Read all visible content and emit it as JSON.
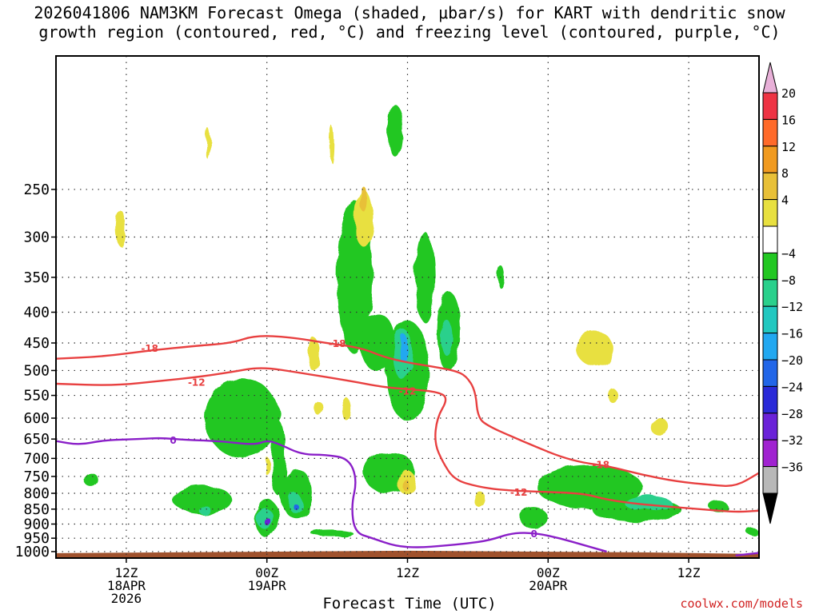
{
  "title": {
    "line1": "2026041806 NAM3KM Forecast Omega (shaded, μbar/s) for KART with dendritic snow",
    "line2": "growth region (contoured, red, °C) and freezing level (contoured, purple, °C)"
  },
  "credit": "coolwx.com/models",
  "chart_data": {
    "type": "heatmap",
    "title": "2026041806 NAM3KM Forecast Omega (shaded, μbar/s) for KART with dendritic snow growth region (contoured, red, °C) and freezing level (contoured, purple, °C)",
    "xlabel": "Forecast Time (UTC)",
    "ylabel": "",
    "x_unit": "hours since 2026-04-18 06Z",
    "xlim": [
      0,
      60
    ],
    "y_unit": "hPa",
    "ylim": [
      1025,
      150
    ],
    "y_scale": "log",
    "grid": true,
    "y_ticks": [
      250,
      300,
      350,
      400,
      450,
      500,
      550,
      600,
      650,
      700,
      750,
      800,
      850,
      900,
      950,
      1000
    ],
    "x_ticks": [
      {
        "t": 6,
        "lines": [
          "12Z",
          "18APR",
          "2026"
        ]
      },
      {
        "t": 18,
        "lines": [
          "00Z",
          "19APR"
        ]
      },
      {
        "t": 30,
        "lines": [
          "12Z"
        ]
      },
      {
        "t": 42,
        "lines": [
          "00Z",
          "20APR"
        ]
      },
      {
        "t": 54,
        "lines": [
          "12Z"
        ]
      }
    ],
    "colorbar": {
      "labels": [
        "20",
        "16",
        "12",
        "8",
        "4",
        "−4",
        "−8",
        "−12",
        "−16",
        "−20",
        "−24",
        "−28",
        "−32",
        "−36"
      ],
      "colors": [
        "#e8b0d8",
        "#ee3344",
        "#ff6a2a",
        "#f09a20",
        "#e8c038",
        "#e8e040",
        "#ffffff",
        "#22c722",
        "#2ad08c",
        "#22c8c0",
        "#22a8f0",
        "#2266e8",
        "#2a2ad8",
        "#6a22d8",
        "#a022d0",
        "#b8b8b8",
        "#000000"
      ]
    },
    "shading": [
      {
        "t": 15.9,
        "p": 600,
        "rt": 3.2,
        "rp": 180,
        "level": "-4"
      },
      {
        "t": 18.0,
        "p": 880,
        "rt": 1.0,
        "rp": 130,
        "level": "-4"
      },
      {
        "t": 17.8,
        "p": 880,
        "rt": 0.7,
        "rp": 70,
        "level": "-8"
      },
      {
        "t": 18.0,
        "p": 890,
        "rt": 0.3,
        "rp": 25,
        "level": "-28"
      },
      {
        "t": 19.0,
        "p": 700,
        "rt": 0.6,
        "rp": 200,
        "level": "-4"
      },
      {
        "t": 20.5,
        "p": 800,
        "rt": 1.4,
        "rp": 150,
        "level": "-4"
      },
      {
        "t": 20.4,
        "p": 830,
        "rt": 0.6,
        "rp": 60,
        "level": "-8"
      },
      {
        "t": 20.4,
        "p": 840,
        "rt": 0.2,
        "rp": 15,
        "level": "-20"
      },
      {
        "t": 12.5,
        "p": 820,
        "rt": 2.5,
        "rp": 90,
        "level": "-4"
      },
      {
        "t": 12.6,
        "p": 850,
        "rt": 0.5,
        "rp": 30,
        "level": "-8"
      },
      {
        "t": 3.0,
        "p": 760,
        "rt": 0.6,
        "rp": 40,
        "level": "-4"
      },
      {
        "t": 25.5,
        "p": 350,
        "rt": 1.5,
        "rp": 200,
        "level": "-4"
      },
      {
        "t": 27.5,
        "p": 450,
        "rt": 1.5,
        "rp": 100,
        "level": "-4"
      },
      {
        "t": 30.0,
        "p": 500,
        "rt": 1.8,
        "rp": 190,
        "level": "-4"
      },
      {
        "t": 29.6,
        "p": 470,
        "rt": 0.9,
        "rp": 90,
        "level": "-8"
      },
      {
        "t": 29.7,
        "p": 460,
        "rt": 0.4,
        "rp": 50,
        "level": "-16"
      },
      {
        "t": 31.5,
        "p": 350,
        "rt": 0.8,
        "rp": 120,
        "level": "-4"
      },
      {
        "t": 33.5,
        "p": 430,
        "rt": 1.0,
        "rp": 130,
        "level": "-4"
      },
      {
        "t": 33.3,
        "p": 440,
        "rt": 0.5,
        "rp": 60,
        "level": "-8"
      },
      {
        "t": 28.5,
        "p": 740,
        "rt": 2.2,
        "rp": 120,
        "level": "-4"
      },
      {
        "t": 38.0,
        "p": 350,
        "rt": 0.3,
        "rp": 30,
        "level": "-4"
      },
      {
        "t": 40.8,
        "p": 880,
        "rt": 1.2,
        "rp": 70,
        "level": "-4"
      },
      {
        "t": 45.5,
        "p": 780,
        "rt": 4.5,
        "rp": 130,
        "level": "-4"
      },
      {
        "t": 49.5,
        "p": 850,
        "rt": 3.8,
        "rp": 80,
        "level": "-4"
      },
      {
        "t": 50.5,
        "p": 830,
        "rt": 2.0,
        "rp": 50,
        "level": "-8"
      },
      {
        "t": 56.5,
        "p": 840,
        "rt": 0.8,
        "rp": 35,
        "level": "-4"
      },
      {
        "t": 59.5,
        "p": 930,
        "rt": 0.5,
        "rp": 25,
        "level": "-4"
      },
      {
        "t": 23.5,
        "p": 930,
        "rt": 1.8,
        "rp": 25,
        "level": "-4"
      },
      {
        "t": 29.0,
        "p": 200,
        "rt": 0.6,
        "rp": 40,
        "level": "-4"
      },
      {
        "t": 5.5,
        "p": 290,
        "rt": 0.4,
        "rp": 40,
        "level": "4"
      },
      {
        "t": 18.0,
        "p": 720,
        "rt": 0.2,
        "rp": 50,
        "level": "4"
      },
      {
        "t": 22.0,
        "p": 470,
        "rt": 0.5,
        "rp": 60,
        "level": "4"
      },
      {
        "t": 22.5,
        "p": 580,
        "rt": 0.4,
        "rp": 30,
        "level": "4"
      },
      {
        "t": 24.8,
        "p": 580,
        "rt": 0.4,
        "rp": 50,
        "level": "4"
      },
      {
        "t": 26.3,
        "p": 280,
        "rt": 0.8,
        "rp": 60,
        "level": "4"
      },
      {
        "t": 26.3,
        "p": 260,
        "rt": 0.3,
        "rp": 25,
        "level": "8"
      },
      {
        "t": 30.0,
        "p": 770,
        "rt": 0.8,
        "rp": 70,
        "level": "4"
      },
      {
        "t": 30.0,
        "p": 780,
        "rt": 0.3,
        "rp": 35,
        "level": "8"
      },
      {
        "t": 36.2,
        "p": 820,
        "rt": 0.5,
        "rp": 50,
        "level": "4"
      },
      {
        "t": 46.0,
        "p": 460,
        "rt": 1.6,
        "rp": 60,
        "level": "4"
      },
      {
        "t": 47.5,
        "p": 550,
        "rt": 0.4,
        "rp": 30,
        "level": "4"
      },
      {
        "t": 51.5,
        "p": 620,
        "rt": 0.8,
        "rp": 40,
        "level": "4"
      },
      {
        "t": 13.0,
        "p": 210,
        "rt": 0.2,
        "rp": 25,
        "level": "4"
      },
      {
        "t": 23.5,
        "p": 210,
        "rt": 0.2,
        "rp": 30,
        "level": "4"
      }
    ],
    "series": [
      {
        "name": "-18",
        "color": "#e84040",
        "label_at": [
          {
            "t": 8.0,
            "p": 458
          },
          {
            "t": 24.0,
            "p": 450
          },
          {
            "t": 46.5,
            "p": 715
          }
        ],
        "points": [
          [
            0,
            478
          ],
          [
            4,
            474
          ],
          [
            8,
            463
          ],
          [
            12,
            455
          ],
          [
            15,
            450
          ],
          [
            17,
            437
          ],
          [
            20,
            440
          ],
          [
            23,
            450
          ],
          [
            26,
            458
          ],
          [
            28,
            475
          ],
          [
            30,
            485
          ],
          [
            32,
            492
          ],
          [
            34,
            500
          ],
          [
            35,
            510
          ],
          [
            35.8,
            540
          ],
          [
            36,
            600
          ],
          [
            37,
            620
          ],
          [
            39,
            645
          ],
          [
            41,
            670
          ],
          [
            43,
            695
          ],
          [
            45,
            712
          ],
          [
            47,
            720
          ],
          [
            50,
            745
          ],
          [
            53,
            765
          ],
          [
            56,
            775
          ],
          [
            58,
            780
          ],
          [
            60,
            740
          ]
        ]
      },
      {
        "name": "-12",
        "color": "#e84040",
        "label_at": [
          {
            "t": 12.0,
            "p": 522
          },
          {
            "t": 30.0,
            "p": 540
          },
          {
            "t": 39.5,
            "p": 795
          }
        ],
        "points": [
          [
            0,
            526
          ],
          [
            5,
            530
          ],
          [
            9,
            520
          ],
          [
            12,
            513
          ],
          [
            15,
            503
          ],
          [
            17.5,
            493
          ],
          [
            21,
            505
          ],
          [
            25,
            520
          ],
          [
            28,
            533
          ],
          [
            30,
            537
          ],
          [
            32.5,
            542
          ],
          [
            33.5,
            555
          ],
          [
            32.5,
            600
          ],
          [
            32.3,
            660
          ],
          [
            33,
            710
          ],
          [
            34,
            760
          ],
          [
            36,
            780
          ],
          [
            38,
            790
          ],
          [
            41,
            795
          ],
          [
            45,
            800
          ],
          [
            47,
            820
          ],
          [
            50,
            835
          ],
          [
            55,
            850
          ],
          [
            58,
            860
          ],
          [
            60,
            855
          ]
        ]
      },
      {
        "name": "0",
        "color": "#8a1fc8",
        "label_at": [
          {
            "t": 10.0,
            "p": 652
          },
          {
            "t": 40.8,
            "p": 932
          }
        ],
        "points": [
          [
            0,
            655
          ],
          [
            2,
            665
          ],
          [
            4,
            653
          ],
          [
            7,
            650
          ],
          [
            9,
            647
          ],
          [
            11,
            652
          ],
          [
            14,
            655
          ],
          [
            17,
            665
          ],
          [
            18,
            653
          ],
          [
            19,
            662
          ],
          [
            21,
            690
          ],
          [
            23,
            690
          ],
          [
            25,
            700
          ],
          [
            25.7,
            760
          ],
          [
            25.2,
            840
          ],
          [
            25.5,
            930
          ],
          [
            27,
            950
          ],
          [
            29,
            980
          ],
          [
            31,
            985
          ],
          [
            33,
            978
          ],
          [
            35,
            970
          ],
          [
            37,
            958
          ],
          [
            39,
            930
          ],
          [
            41,
            932
          ],
          [
            43,
            950
          ],
          [
            45,
            975
          ],
          [
            47,
            1000
          ]
        ]
      },
      {
        "name": "0",
        "color": "#8a1fc8",
        "label_at": [],
        "points": [
          [
            58,
            1015
          ],
          [
            60,
            1005
          ]
        ]
      }
    ]
  }
}
